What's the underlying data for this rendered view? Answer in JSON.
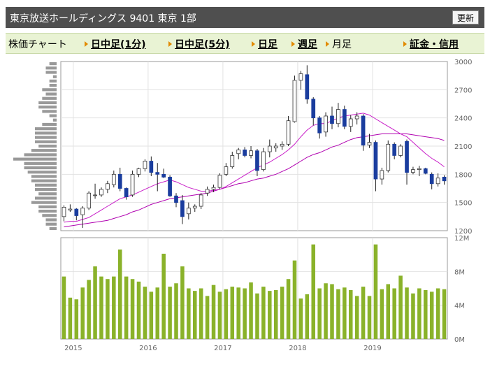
{
  "header": {
    "title": "東京放送ホールディングス 9401 東京 1部",
    "refresh_label": "更新"
  },
  "nav": {
    "current": "株価チャート",
    "links": [
      {
        "label": "日中足(1分)"
      },
      {
        "label": "日中足(5分)"
      },
      {
        "label": "日足"
      },
      {
        "label": "週足"
      },
      {
        "label": "月足",
        "plain": true
      },
      {
        "label": "証金・信用"
      }
    ]
  },
  "colors": {
    "candle_down": "#1a3d9e",
    "candle_up": "#ffffff",
    "ma_short": "#c81ec8",
    "ma_long": "#b000b0",
    "volume": "#8ab22a",
    "volume_profile": "#999999"
  },
  "chart_data": [
    {
      "type": "candlestick",
      "y_ticks": [
        "3000",
        "2700",
        "2400",
        "2100",
        "1800",
        "1500",
        "1200"
      ],
      "ylim": [
        1200,
        3000
      ],
      "x_ticks": [
        "2015",
        "2016",
        "2017",
        "2018",
        "2019"
      ],
      "candles": [
        {
          "o": 1350,
          "h": 1470,
          "l": 1300,
          "c": 1450
        },
        {
          "o": 1420,
          "h": 1480,
          "l": 1400,
          "c": 1430
        },
        {
          "o": 1430,
          "h": 1440,
          "l": 1310,
          "c": 1360
        },
        {
          "o": 1370,
          "h": 1460,
          "l": 1230,
          "c": 1440
        },
        {
          "o": 1440,
          "h": 1620,
          "l": 1420,
          "c": 1600
        },
        {
          "o": 1580,
          "h": 1700,
          "l": 1540,
          "c": 1580
        },
        {
          "o": 1580,
          "h": 1660,
          "l": 1560,
          "c": 1640
        },
        {
          "o": 1640,
          "h": 1730,
          "l": 1600,
          "c": 1700
        },
        {
          "o": 1690,
          "h": 1840,
          "l": 1660,
          "c": 1800
        },
        {
          "o": 1800,
          "h": 1870,
          "l": 1620,
          "c": 1650
        },
        {
          "o": 1650,
          "h": 1660,
          "l": 1530,
          "c": 1560
        },
        {
          "o": 1580,
          "h": 1840,
          "l": 1560,
          "c": 1800
        },
        {
          "o": 1800,
          "h": 1870,
          "l": 1770,
          "c": 1860
        },
        {
          "o": 1860,
          "h": 1960,
          "l": 1830,
          "c": 1940
        },
        {
          "o": 1940,
          "h": 1990,
          "l": 1780,
          "c": 1820
        },
        {
          "o": 1820,
          "h": 1920,
          "l": 1620,
          "c": 1800
        },
        {
          "o": 1800,
          "h": 1860,
          "l": 1760,
          "c": 1770
        },
        {
          "o": 1770,
          "h": 1790,
          "l": 1560,
          "c": 1570
        },
        {
          "o": 1570,
          "h": 1600,
          "l": 1450,
          "c": 1500
        },
        {
          "o": 1520,
          "h": 1580,
          "l": 1270,
          "c": 1350
        },
        {
          "o": 1380,
          "h": 1500,
          "l": 1320,
          "c": 1440
        },
        {
          "o": 1440,
          "h": 1480,
          "l": 1400,
          "c": 1460
        },
        {
          "o": 1460,
          "h": 1600,
          "l": 1430,
          "c": 1580
        },
        {
          "o": 1600,
          "h": 1670,
          "l": 1570,
          "c": 1640
        },
        {
          "o": 1640,
          "h": 1690,
          "l": 1610,
          "c": 1660
        },
        {
          "o": 1660,
          "h": 1810,
          "l": 1640,
          "c": 1790
        },
        {
          "o": 1800,
          "h": 1920,
          "l": 1780,
          "c": 1880
        },
        {
          "o": 1880,
          "h": 2040,
          "l": 1860,
          "c": 2000
        },
        {
          "o": 2020,
          "h": 2080,
          "l": 1960,
          "c": 2060
        },
        {
          "o": 2060,
          "h": 2090,
          "l": 1980,
          "c": 2000
        },
        {
          "o": 2000,
          "h": 2100,
          "l": 1970,
          "c": 2050
        },
        {
          "o": 2050,
          "h": 2070,
          "l": 1780,
          "c": 1840
        },
        {
          "o": 1850,
          "h": 2080,
          "l": 1830,
          "c": 2040
        },
        {
          "o": 2040,
          "h": 2170,
          "l": 1980,
          "c": 2100
        },
        {
          "o": 2080,
          "h": 2130,
          "l": 2040,
          "c": 2100
        },
        {
          "o": 2100,
          "h": 2150,
          "l": 2060,
          "c": 2120
        },
        {
          "o": 2120,
          "h": 2420,
          "l": 2100,
          "c": 2370
        },
        {
          "o": 2360,
          "h": 2850,
          "l": 2350,
          "c": 2800
        },
        {
          "o": 2800,
          "h": 2900,
          "l": 2700,
          "c": 2870
        },
        {
          "o": 2860,
          "h": 2960,
          "l": 2550,
          "c": 2600
        },
        {
          "o": 2600,
          "h": 2620,
          "l": 2320,
          "c": 2400
        },
        {
          "o": 2400,
          "h": 2420,
          "l": 2180,
          "c": 2240
        },
        {
          "o": 2250,
          "h": 2460,
          "l": 2200,
          "c": 2420
        },
        {
          "o": 2420,
          "h": 2520,
          "l": 2280,
          "c": 2340
        },
        {
          "o": 2340,
          "h": 2560,
          "l": 2300,
          "c": 2490
        },
        {
          "o": 2490,
          "h": 2530,
          "l": 2280,
          "c": 2310
        },
        {
          "o": 2310,
          "h": 2430,
          "l": 2250,
          "c": 2390
        },
        {
          "o": 2390,
          "h": 2460,
          "l": 2330,
          "c": 2420
        },
        {
          "o": 2420,
          "h": 2440,
          "l": 2050,
          "c": 2110
        },
        {
          "o": 2110,
          "h": 2230,
          "l": 2080,
          "c": 2140
        },
        {
          "o": 2140,
          "h": 2160,
          "l": 1620,
          "c": 1750
        },
        {
          "o": 1750,
          "h": 1870,
          "l": 1690,
          "c": 1840
        },
        {
          "o": 1840,
          "h": 2160,
          "l": 1820,
          "c": 2120
        },
        {
          "o": 2120,
          "h": 2140,
          "l": 1960,
          "c": 2000
        },
        {
          "o": 2000,
          "h": 2120,
          "l": 1980,
          "c": 2100
        },
        {
          "o": 2150,
          "h": 2170,
          "l": 1690,
          "c": 1820
        },
        {
          "o": 1820,
          "h": 1880,
          "l": 1800,
          "c": 1850
        },
        {
          "o": 1850,
          "h": 1890,
          "l": 1780,
          "c": 1860
        },
        {
          "o": 1860,
          "h": 1870,
          "l": 1800,
          "c": 1810
        },
        {
          "o": 1800,
          "h": 1820,
          "l": 1640,
          "c": 1700
        },
        {
          "o": 1700,
          "h": 1810,
          "l": 1670,
          "c": 1760
        },
        {
          "o": 1770,
          "h": 1790,
          "l": 1690,
          "c": 1730
        }
      ],
      "ma_short": [
        1290,
        1300,
        1300,
        1320,
        1340,
        1380,
        1420,
        1460,
        1500,
        1540,
        1560,
        1580,
        1610,
        1640,
        1670,
        1700,
        1720,
        1740,
        1720,
        1690,
        1660,
        1640,
        1620,
        1620,
        1630,
        1640,
        1670,
        1710,
        1750,
        1790,
        1830,
        1870,
        1900,
        1930,
        1970,
        2010,
        2060,
        2120,
        2200,
        2270,
        2320,
        2340,
        2340,
        2370,
        2400,
        2420,
        2430,
        2440,
        2450,
        2430,
        2390,
        2350,
        2310,
        2270,
        2230,
        2200,
        2140,
        2080,
        2020,
        1970,
        1930,
        1880
      ],
      "ma_long": [
        1240,
        1250,
        1260,
        1270,
        1280,
        1290,
        1300,
        1310,
        1330,
        1350,
        1370,
        1400,
        1420,
        1450,
        1480,
        1500,
        1520,
        1540,
        1550,
        1560,
        1570,
        1580,
        1590,
        1600,
        1620,
        1640,
        1660,
        1680,
        1700,
        1710,
        1730,
        1750,
        1760,
        1780,
        1800,
        1830,
        1860,
        1900,
        1940,
        1980,
        2010,
        2030,
        2060,
        2090,
        2110,
        2140,
        2170,
        2190,
        2200,
        2210,
        2220,
        2230,
        2230,
        2230,
        2230,
        2230,
        2220,
        2210,
        2200,
        2190,
        2180,
        2160
      ]
    },
    {
      "type": "bar",
      "y_ticks": [
        "12M",
        "8M",
        "4M",
        "0M"
      ],
      "ylim": [
        0,
        12
      ],
      "x_ticks": [
        "2015",
        "2016",
        "2017",
        "2018",
        "2019"
      ],
      "values": [
        7.4,
        4.9,
        4.7,
        6.1,
        7.0,
        8.6,
        7.4,
        7.1,
        7.4,
        10.6,
        7.4,
        7.1,
        6.8,
        6.2,
        5.6,
        6.1,
        10.1,
        6.2,
        6.6,
        8.6,
        6.0,
        5.7,
        6.0,
        5.1,
        6.4,
        5.6,
        5.9,
        6.2,
        6.1,
        6.0,
        6.7,
        5.4,
        6.2,
        5.7,
        5.8,
        6.2,
        7.1,
        9.3,
        4.8,
        5.3,
        11.2,
        6.0,
        6.6,
        6.5,
        5.9,
        6.1,
        5.8,
        5.1,
        6.2,
        5.1,
        11.2,
        5.9,
        6.5,
        6.0,
        7.5,
        6.1,
        5.4,
        6.0,
        5.8,
        5.6,
        6.0,
        5.9
      ]
    },
    {
      "type": "bar",
      "orientation": "horizontal",
      "values": [
        2,
        3,
        3,
        1,
        2,
        2,
        4,
        3,
        4,
        5,
        5,
        4,
        2,
        1,
        4,
        6,
        6,
        6,
        6,
        5,
        7,
        9,
        12,
        9,
        9,
        8,
        7,
        7,
        6,
        6,
        5,
        6,
        7,
        5,
        5,
        4,
        3,
        3,
        2
      ]
    }
  ]
}
